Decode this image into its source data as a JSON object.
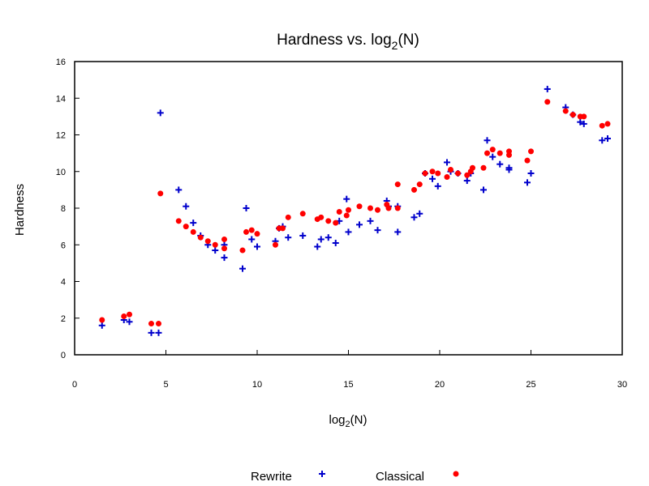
{
  "chart_data": {
    "type": "scatter",
    "title_main": "Hardness vs. log",
    "title_sub": "2",
    "title_tail": "(N)",
    "xlabel_main": "log",
    "xlabel_sub": "2",
    "xlabel_tail": "(N)",
    "ylabel": "Hardness",
    "xlim": [
      0,
      30
    ],
    "ylim": [
      0,
      16
    ],
    "xticks": [
      "0",
      "5",
      "10",
      "15",
      "20",
      "25",
      "30"
    ],
    "yticks": [
      "0",
      "2",
      "4",
      "6",
      "8",
      "10",
      "12",
      "14",
      "16"
    ],
    "grid": false,
    "legend_position": "bottom",
    "series": [
      {
        "name": "Rewrite",
        "marker": "plus",
        "color": "#0000cc",
        "points": [
          [
            1.5,
            1.6
          ],
          [
            2.7,
            1.9
          ],
          [
            3.0,
            1.8
          ],
          [
            4.2,
            1.2
          ],
          [
            4.6,
            1.2
          ],
          [
            4.7,
            13.2
          ],
          [
            5.7,
            9.0
          ],
          [
            6.1,
            8.1
          ],
          [
            6.5,
            7.2
          ],
          [
            6.9,
            6.5
          ],
          [
            7.3,
            6.0
          ],
          [
            7.7,
            5.7
          ],
          [
            8.2,
            5.3
          ],
          [
            8.2,
            6.0
          ],
          [
            9.2,
            4.7
          ],
          [
            9.4,
            8.0
          ],
          [
            9.7,
            6.3
          ],
          [
            10.0,
            5.9
          ],
          [
            11.0,
            6.2
          ],
          [
            11.2,
            6.9
          ],
          [
            11.4,
            7.0
          ],
          [
            11.7,
            6.4
          ],
          [
            12.5,
            6.5
          ],
          [
            13.3,
            5.9
          ],
          [
            13.5,
            6.3
          ],
          [
            13.9,
            6.4
          ],
          [
            14.3,
            6.1
          ],
          [
            14.5,
            7.3
          ],
          [
            14.9,
            8.5
          ],
          [
            15.0,
            6.7
          ],
          [
            15.6,
            7.1
          ],
          [
            16.2,
            7.3
          ],
          [
            16.6,
            6.8
          ],
          [
            17.1,
            8.4
          ],
          [
            17.2,
            8.1
          ],
          [
            17.7,
            6.7
          ],
          [
            17.7,
            8.1
          ],
          [
            18.6,
            7.5
          ],
          [
            18.9,
            7.7
          ],
          [
            19.2,
            9.9
          ],
          [
            19.6,
            9.6
          ],
          [
            19.9,
            9.2
          ],
          [
            20.4,
            10.5
          ],
          [
            20.6,
            10.0
          ],
          [
            21.0,
            9.9
          ],
          [
            21.5,
            9.5
          ],
          [
            21.7,
            9.9
          ],
          [
            22.4,
            9.0
          ],
          [
            22.6,
            11.7
          ],
          [
            22.9,
            10.8
          ],
          [
            23.3,
            10.4
          ],
          [
            23.8,
            10.1
          ],
          [
            23.8,
            10.2
          ],
          [
            24.8,
            9.4
          ],
          [
            25.0,
            9.9
          ],
          [
            25.9,
            14.5
          ],
          [
            26.9,
            13.5
          ],
          [
            27.3,
            13.1
          ],
          [
            27.7,
            12.7
          ],
          [
            27.9,
            12.6
          ],
          [
            28.9,
            11.7
          ],
          [
            29.2,
            11.8
          ]
        ]
      },
      {
        "name": "Classical",
        "marker": "dot",
        "color": "#ff0000",
        "points": [
          [
            1.5,
            1.9
          ],
          [
            2.7,
            2.1
          ],
          [
            3.0,
            2.2
          ],
          [
            4.2,
            1.7
          ],
          [
            4.6,
            1.7
          ],
          [
            4.7,
            8.8
          ],
          [
            5.7,
            7.3
          ],
          [
            6.1,
            7.0
          ],
          [
            6.5,
            6.7
          ],
          [
            6.9,
            6.4
          ],
          [
            7.3,
            6.2
          ],
          [
            7.7,
            6.0
          ],
          [
            8.2,
            5.8
          ],
          [
            8.2,
            6.3
          ],
          [
            9.2,
            5.7
          ],
          [
            9.4,
            6.7
          ],
          [
            9.7,
            6.8
          ],
          [
            10.0,
            6.6
          ],
          [
            11.0,
            6.0
          ],
          [
            11.2,
            6.9
          ],
          [
            11.4,
            6.9
          ],
          [
            11.7,
            7.5
          ],
          [
            12.5,
            7.7
          ],
          [
            13.3,
            7.4
          ],
          [
            13.5,
            7.5
          ],
          [
            13.9,
            7.3
          ],
          [
            14.3,
            7.2
          ],
          [
            14.5,
            7.8
          ],
          [
            14.9,
            7.6
          ],
          [
            15.0,
            7.9
          ],
          [
            15.6,
            8.1
          ],
          [
            16.2,
            8.0
          ],
          [
            16.6,
            7.9
          ],
          [
            17.1,
            8.2
          ],
          [
            17.2,
            8.0
          ],
          [
            17.7,
            8.0
          ],
          [
            17.7,
            9.3
          ],
          [
            18.6,
            9.0
          ],
          [
            18.9,
            9.3
          ],
          [
            19.2,
            9.9
          ],
          [
            19.6,
            10.0
          ],
          [
            19.9,
            9.9
          ],
          [
            20.4,
            9.7
          ],
          [
            20.6,
            10.1
          ],
          [
            21.0,
            9.9
          ],
          [
            21.5,
            9.8
          ],
          [
            21.7,
            10.0
          ],
          [
            21.8,
            10.2
          ],
          [
            22.4,
            10.2
          ],
          [
            22.6,
            11.0
          ],
          [
            22.9,
            11.2
          ],
          [
            23.3,
            11.0
          ],
          [
            23.8,
            10.9
          ],
          [
            23.8,
            11.1
          ],
          [
            24.8,
            10.6
          ],
          [
            25.0,
            11.1
          ],
          [
            25.9,
            13.8
          ],
          [
            26.9,
            13.3
          ],
          [
            27.3,
            13.1
          ],
          [
            27.7,
            13.0
          ],
          [
            27.9,
            13.0
          ],
          [
            28.9,
            12.5
          ],
          [
            29.2,
            12.6
          ]
        ]
      }
    ]
  }
}
